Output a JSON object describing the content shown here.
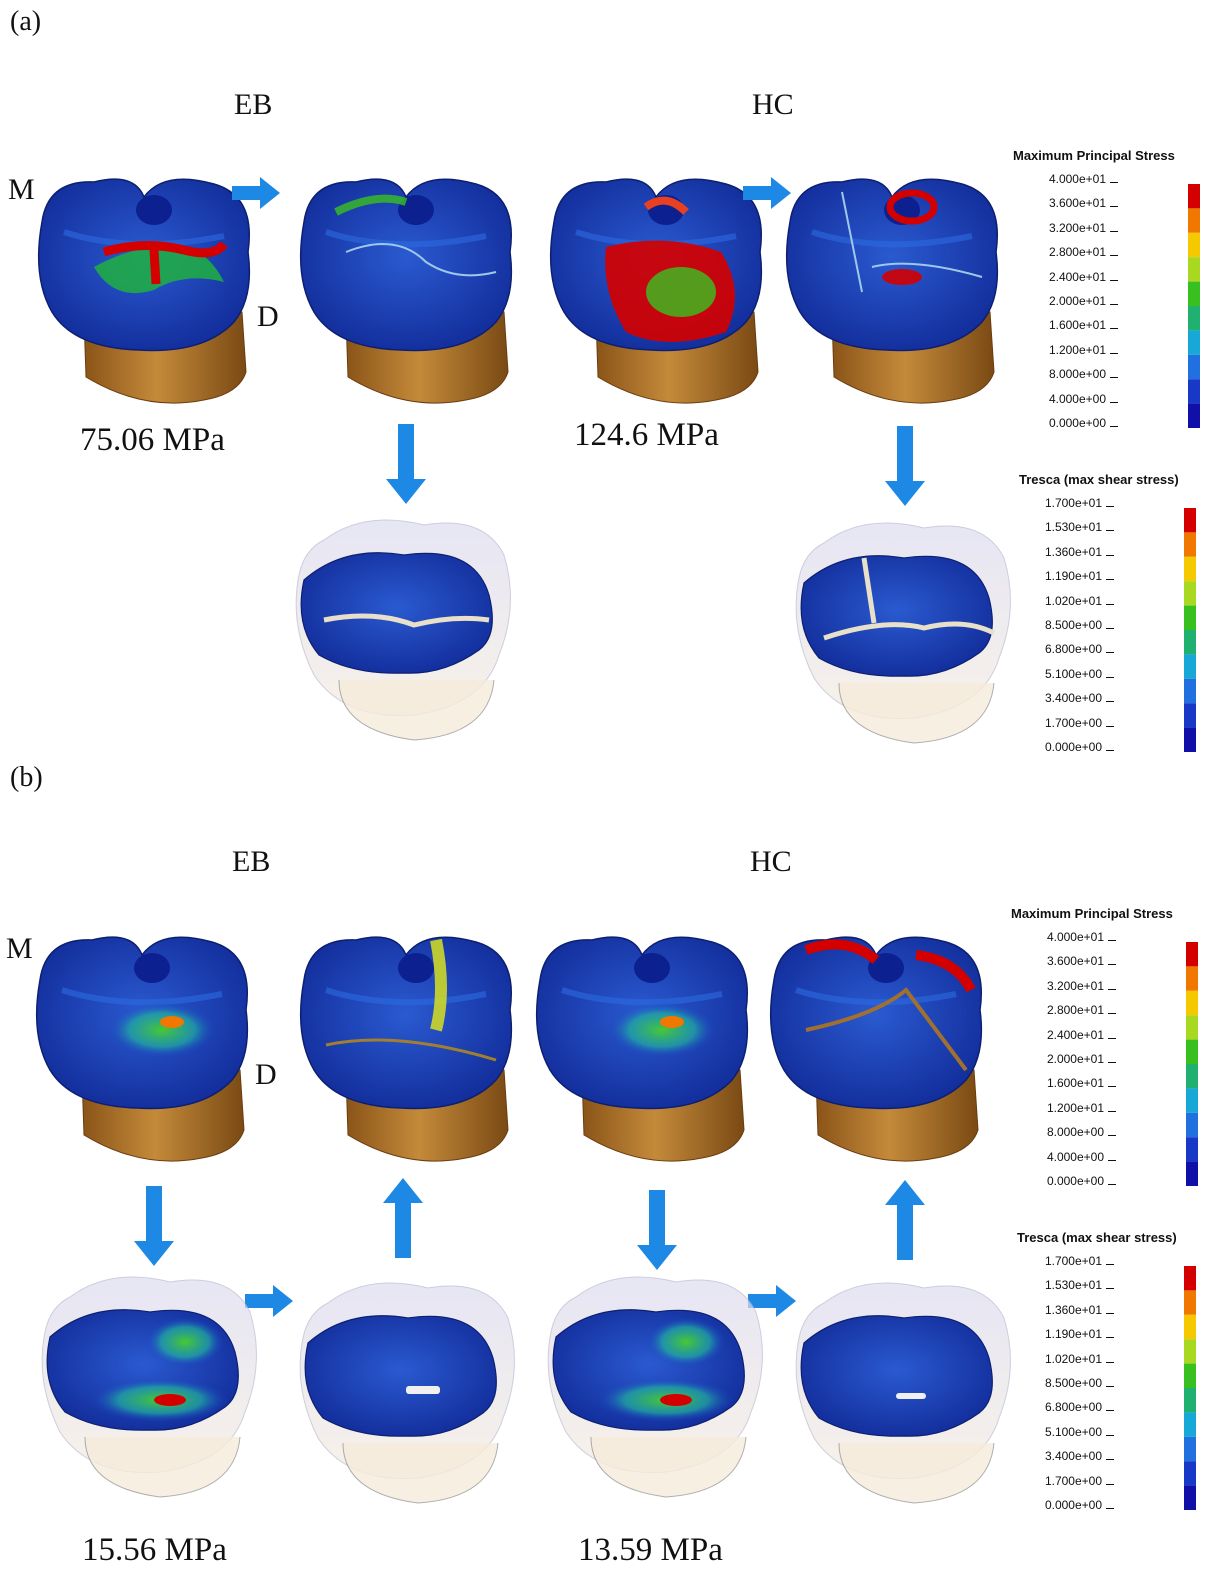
{
  "panels": {
    "a": {
      "label": "(a)",
      "group_left": "EB",
      "group_right": "HC",
      "orientation_mesial": "M",
      "orientation_distal": "D",
      "value_left": "75.06 MPa",
      "value_right": "124.6 MPa"
    },
    "b": {
      "label": "(b)",
      "group_left": "EB",
      "group_right": "HC",
      "orientation_mesial": "M",
      "orientation_distal": "D",
      "value_left": "15.56 MPa",
      "value_right": "13.59 MPa"
    }
  },
  "legends": {
    "principal": {
      "title": "Maximum Principal Stress",
      "ticks": [
        "4.000e+01",
        "3.600e+01",
        "3.200e+01",
        "2.800e+01",
        "2.400e+01",
        "2.000e+01",
        "1.600e+01",
        "1.200e+01",
        "8.000e+00",
        "4.000e+00",
        "0.000e+00"
      ]
    },
    "tresca": {
      "title": "Tresca (max shear stress)",
      "ticks": [
        "1.700e+01",
        "1.530e+01",
        "1.360e+01",
        "1.190e+01",
        "1.020e+01",
        "8.500e+00",
        "6.800e+00",
        "5.100e+00",
        "3.400e+00",
        "1.700e+00",
        "0.000e+00"
      ]
    },
    "colors": [
      "#d40000",
      "#f07800",
      "#f5c800",
      "#a8d820",
      "#38c020",
      "#20b070",
      "#18a8d8",
      "#2070e0",
      "#1838c8",
      "#1010a8"
    ]
  },
  "colors": {
    "arrow": "#1e88e5",
    "enamel_low": "#1a3fb0",
    "root": "#b8782c"
  }
}
